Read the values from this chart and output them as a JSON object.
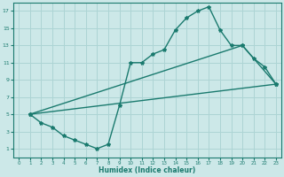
{
  "xlabel": "Humidex (Indice chaleur)",
  "bg_color": "#cce8e8",
  "line_color": "#1a7a6e",
  "grid_color": "#add4d4",
  "xlim": [
    -0.5,
    23.5
  ],
  "ylim": [
    0,
    18
  ],
  "xticks": [
    0,
    1,
    2,
    3,
    4,
    5,
    6,
    7,
    8,
    9,
    10,
    11,
    12,
    13,
    14,
    15,
    16,
    17,
    18,
    19,
    20,
    21,
    22,
    23
  ],
  "yticks": [
    1,
    3,
    5,
    7,
    9,
    11,
    13,
    15,
    17
  ],
  "curve1_x": [
    1,
    2,
    3,
    4,
    5,
    6,
    7,
    8,
    9,
    10,
    11,
    12,
    13,
    14,
    15,
    16,
    17,
    18,
    19,
    20,
    21,
    22,
    23
  ],
  "curve1_y": [
    5,
    4,
    3.5,
    2.5,
    2,
    1.5,
    1,
    1.5,
    6,
    11,
    11,
    12,
    12.5,
    14.8,
    16.2,
    17,
    17.5,
    14.8,
    13,
    13,
    11.5,
    10.5,
    8.5
  ],
  "curve2_x": [
    1,
    20,
    23
  ],
  "curve2_y": [
    5,
    13,
    8.5
  ],
  "curve3_x": [
    1,
    23
  ],
  "curve3_y": [
    5,
    8.5
  ]
}
